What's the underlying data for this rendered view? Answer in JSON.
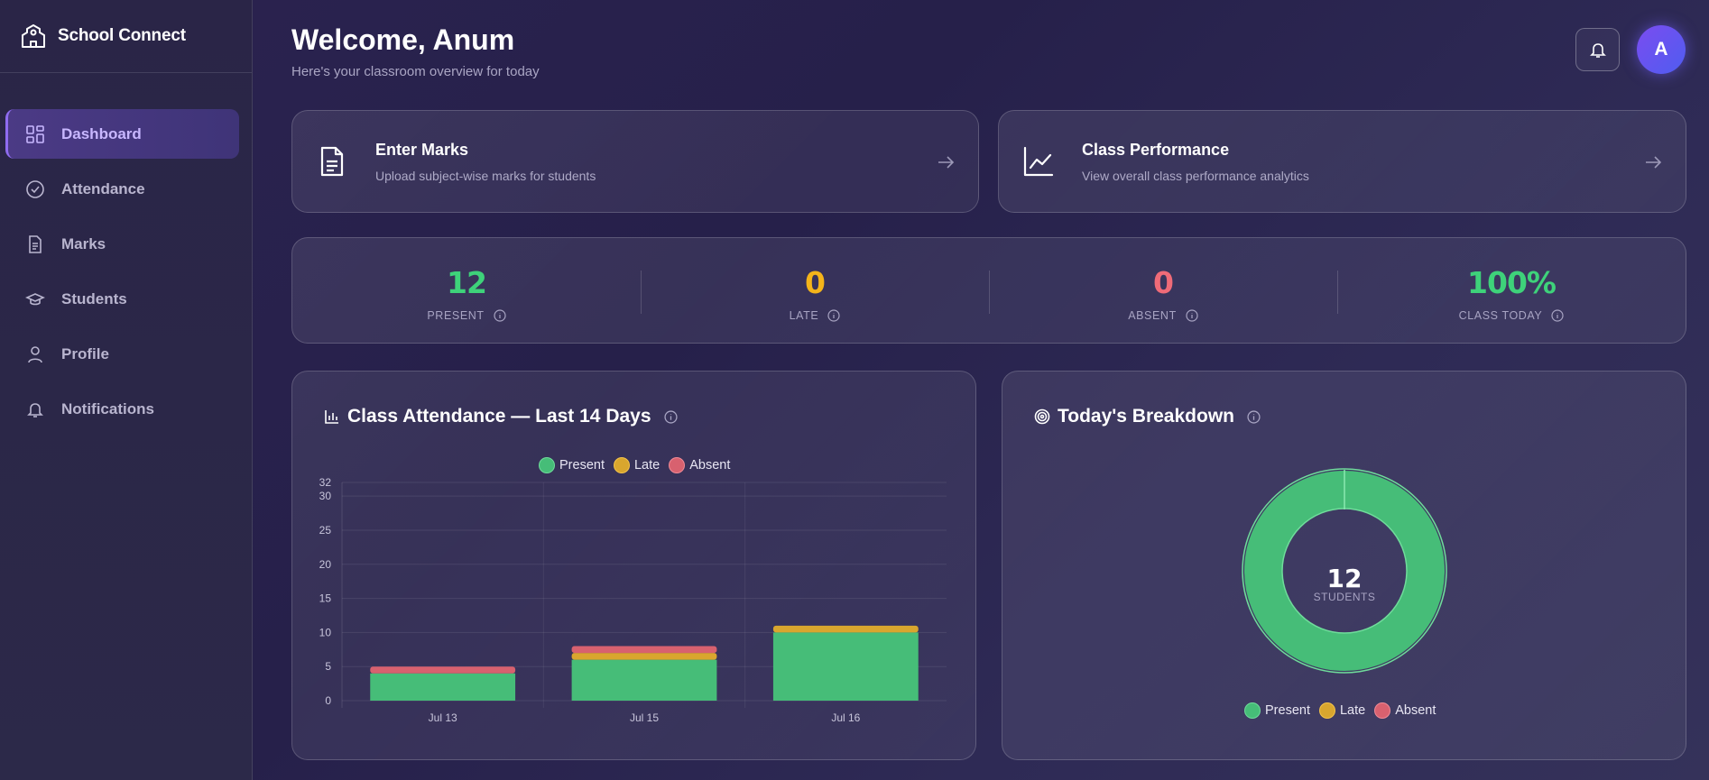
{
  "app": {
    "name": "School Connect"
  },
  "sidebar": {
    "items": [
      {
        "label": "Dashboard",
        "icon": "dashboard-icon",
        "active": true
      },
      {
        "label": "Attendance",
        "icon": "check-circle-icon",
        "active": false
      },
      {
        "label": "Marks",
        "icon": "document-icon",
        "active": false
      },
      {
        "label": "Students",
        "icon": "graduation-cap-icon",
        "active": false
      },
      {
        "label": "Profile",
        "icon": "user-icon",
        "active": false
      },
      {
        "label": "Notifications",
        "icon": "bell-icon",
        "active": false
      }
    ]
  },
  "header": {
    "title": "Welcome, Anum",
    "subtitle": "Here's your classroom overview for today",
    "avatar_initial": "A"
  },
  "actions": [
    {
      "title": "Enter Marks",
      "description": "Upload subject-wise marks for students"
    },
    {
      "title": "Class Performance",
      "description": "View overall class performance analytics"
    }
  ],
  "stats": [
    {
      "value": "12",
      "label": "PRESENT",
      "color": "#3ed27a"
    },
    {
      "value": "0",
      "label": "LATE",
      "color": "#f4b41a"
    },
    {
      "value": "0",
      "label": "ABSENT",
      "color": "#ef6b78"
    },
    {
      "value": "100%",
      "label": "CLASS TODAY",
      "color": "#3ed27a"
    }
  ],
  "colors": {
    "present": "#46bd78",
    "late": "#d9a62e",
    "absent": "#d8616f"
  },
  "attendance_panel": {
    "title": "Class Attendance — Last 14 Days"
  },
  "breakdown_panel": {
    "title": "Today's Breakdown",
    "center_value": "12",
    "center_label": "STUDENTS"
  },
  "chart_data": [
    {
      "type": "bar",
      "stacked": true,
      "title": "Class Attendance — Last 14 Days",
      "categories": [
        "Jul 13",
        "Jul 15",
        "Jul 16"
      ],
      "series": [
        {
          "name": "Present",
          "values": [
            4,
            6,
            10
          ]
        },
        {
          "name": "Late",
          "values": [
            0,
            1,
            1
          ]
        },
        {
          "name": "Absent",
          "values": [
            1,
            1,
            0
          ]
        }
      ],
      "yticks": [
        0,
        5,
        10,
        15,
        20,
        25,
        30,
        32
      ],
      "ylim": [
        0,
        32
      ],
      "legend": "top-center",
      "grid": true
    },
    {
      "type": "pie",
      "donut": true,
      "title": "Today's Breakdown",
      "categories": [
        "Present",
        "Late",
        "Absent"
      ],
      "values": [
        12,
        0,
        0
      ],
      "legend": "bottom-center"
    }
  ]
}
